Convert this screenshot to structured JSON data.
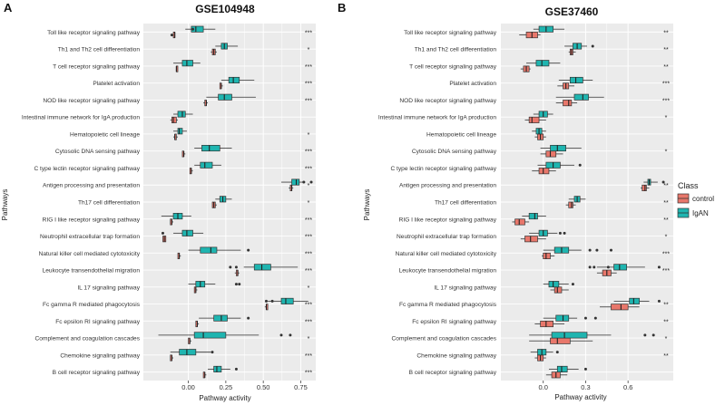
{
  "figure": {
    "pathways": [
      "Toll like receptor signaling pathway",
      "Th1 and Th2 cell differentiation",
      "T cell receptor signaling pathway",
      "Platelet activation",
      "NOD like receptor signaling pathway",
      "Intestinal immune network for IgA production",
      "Hematopoietic cell lineage",
      "Cytosolic DNA sensing pathway",
      "C type lectin receptor signaling pathway",
      "Antigen processing and presentation",
      "Th17 cell differentiation",
      "RIG I like receptor signaling pathway",
      "Neutrophil extracellular trap formation",
      "Natural killer cell mediated cytotoxicity",
      "Leukocyte transendothelial migration",
      "IL 17 signaling pathway",
      "Fc gamma R mediated phagocytosis",
      "Fc epsilon RI signaling pathway",
      "Complement and coagulation cascades",
      "Chemokine signaling pathway",
      "B cell receptor signaling pathway"
    ],
    "colors": {
      "control": "#e8776b",
      "IgAN": "#1fb5b0",
      "panel_bg": "#ebebeb",
      "grid": "#ffffff"
    },
    "legend": {
      "title": "Class",
      "entries": [
        "control",
        "IgAN"
      ],
      "placement": "right of panel B"
    }
  },
  "chart_data": [
    {
      "type": "boxplot",
      "panel_letter": "A",
      "title": "GSE104948",
      "xlabel": "Pathway activity",
      "ylabel": "Pathways",
      "xlim": [
        -0.3,
        0.85
      ],
      "xticks": [
        "0.00",
        "0.25",
        "0.50",
        "0.75"
      ],
      "xtick_values": [
        0,
        0.25,
        0.5,
        0.75
      ],
      "significance": [
        "***",
        "*",
        "***",
        "***",
        "***",
        "",
        "*",
        "***",
        "***",
        "*",
        "*",
        "***",
        "***",
        "***",
        "***",
        "*",
        "***",
        "***",
        "*",
        "***",
        "***"
      ],
      "control": [
        [
          -0.1,
          -0.1,
          -0.09,
          -0.09,
          -0.09,
          [
            -0.11
          ]
        ],
        [
          0.15,
          0.16,
          0.17,
          0.18,
          0.19,
          []
        ],
        [
          -0.08,
          -0.08,
          -0.08,
          -0.07,
          -0.07,
          []
        ],
        [
          0.21,
          0.21,
          0.22,
          0.22,
          0.23,
          []
        ],
        [
          0.1,
          0.11,
          0.12,
          0.12,
          0.13,
          []
        ],
        [
          -0.12,
          -0.11,
          -0.1,
          -0.08,
          -0.07,
          []
        ],
        [
          -0.1,
          -0.09,
          -0.09,
          -0.08,
          -0.07,
          []
        ],
        [
          -0.04,
          -0.04,
          -0.03,
          -0.03,
          -0.02,
          []
        ],
        [
          0.01,
          0.01,
          0.02,
          0.02,
          0.03,
          []
        ],
        [
          0.67,
          0.68,
          0.69,
          0.69,
          0.7,
          []
        ],
        [
          0.16,
          0.16,
          0.17,
          0.18,
          0.19,
          []
        ],
        [
          -0.12,
          -0.12,
          -0.11,
          -0.11,
          -0.1,
          []
        ],
        [
          -0.17,
          -0.17,
          -0.16,
          -0.15,
          -0.15,
          []
        ],
        [
          -0.07,
          -0.07,
          -0.06,
          -0.06,
          -0.05,
          []
        ],
        [
          0.31,
          0.32,
          0.33,
          0.33,
          0.34,
          []
        ],
        [
          0.04,
          0.04,
          0.05,
          0.05,
          0.06,
          []
        ],
        [
          0.51,
          0.52,
          0.52,
          0.53,
          0.53,
          []
        ],
        [
          0.05,
          0.05,
          0.06,
          0.06,
          0.07,
          []
        ],
        [
          0.0,
          0.0,
          0.01,
          0.01,
          0.02,
          []
        ],
        [
          -0.12,
          -0.12,
          -0.11,
          -0.11,
          -0.1,
          []
        ],
        [
          0.1,
          0.1,
          0.11,
          0.11,
          0.12,
          []
        ]
      ],
      "IgAN": [
        [
          -0.02,
          0.02,
          0.05,
          0.1,
          0.18,
          [
            0.03
          ]
        ],
        [
          0.18,
          0.22,
          0.24,
          0.26,
          0.33,
          []
        ],
        [
          -0.1,
          -0.04,
          -0.01,
          0.03,
          0.08,
          []
        ],
        [
          0.22,
          0.27,
          0.3,
          0.34,
          0.44,
          []
        ],
        [
          0.12,
          0.2,
          0.24,
          0.29,
          0.45,
          []
        ],
        [
          -0.1,
          -0.07,
          -0.04,
          -0.02,
          0.03,
          []
        ],
        [
          -0.1,
          -0.07,
          -0.06,
          -0.04,
          -0.01,
          []
        ],
        [
          0.04,
          0.09,
          0.14,
          0.21,
          0.29,
          []
        ],
        [
          0.04,
          0.08,
          0.11,
          0.16,
          0.22,
          []
        ],
        [
          0.62,
          0.69,
          0.72,
          0.74,
          0.78,
          [
            0.82,
            0.77
          ]
        ],
        [
          0.18,
          0.21,
          0.23,
          0.25,
          0.29,
          []
        ],
        [
          -0.18,
          -0.1,
          -0.07,
          -0.04,
          0.02,
          []
        ],
        [
          -0.1,
          -0.04,
          -0.01,
          0.03,
          0.1,
          [
            -0.17
          ]
        ],
        [
          0.0,
          0.08,
          0.15,
          0.19,
          0.35,
          [
            0.4
          ]
        ],
        [
          0.37,
          0.44,
          0.49,
          0.55,
          0.73,
          [
            0.28,
            0.32
          ]
        ],
        [
          0.0,
          0.05,
          0.08,
          0.11,
          0.18,
          [
            0.32,
            0.34
          ]
        ],
        [
          0.53,
          0.62,
          0.65,
          0.7,
          0.8,
          [
            0.52,
            0.56
          ]
        ],
        [
          0.07,
          0.17,
          0.22,
          0.26,
          0.35,
          [
            0.4
          ]
        ],
        [
          -0.2,
          0.04,
          0.1,
          0.25,
          0.47,
          [
            0.62,
            0.68
          ]
        ],
        [
          -0.12,
          -0.06,
          -0.01,
          0.05,
          0.15,
          [
            0.16
          ]
        ],
        [
          0.13,
          0.17,
          0.19,
          0.22,
          0.28,
          [
            0.32
          ]
        ]
      ]
    },
    {
      "type": "boxplot",
      "panel_letter": "B",
      "title": "GSE37460",
      "xlabel": "Pathway activity",
      "ylabel": "Pathways",
      "xlim": [
        -0.3,
        0.92
      ],
      "xticks": [
        "0.0",
        "0.3",
        "0.6"
      ],
      "xtick_values": [
        0,
        0.3,
        0.6
      ],
      "significance": [
        "**",
        "**",
        "**",
        "***",
        "***",
        "*",
        "",
        "*",
        "",
        "**",
        "**",
        "**",
        "*",
        "***",
        "***",
        "",
        "**",
        "**",
        "*",
        "**",
        ""
      ],
      "control": [
        [
          -0.17,
          -0.12,
          -0.08,
          -0.04,
          -0.02,
          []
        ],
        [
          0.18,
          0.19,
          0.2,
          0.21,
          0.23,
          []
        ],
        [
          -0.16,
          -0.14,
          -0.12,
          -0.1,
          -0.09,
          []
        ],
        [
          0.1,
          0.14,
          0.16,
          0.18,
          0.22,
          []
        ],
        [
          0.09,
          0.14,
          0.18,
          0.2,
          0.24,
          []
        ],
        [
          -0.13,
          -0.1,
          -0.08,
          -0.03,
          0.02,
          []
        ],
        [
          -0.06,
          -0.04,
          -0.02,
          0.0,
          0.02,
          []
        ],
        [
          -0.02,
          0.02,
          0.05,
          0.09,
          0.14,
          []
        ],
        [
          -0.08,
          -0.03,
          0.0,
          0.04,
          0.09,
          []
        ],
        [
          0.69,
          0.7,
          0.72,
          0.73,
          0.75,
          []
        ],
        [
          0.16,
          0.18,
          0.2,
          0.21,
          0.23,
          []
        ],
        [
          -0.22,
          -0.2,
          -0.17,
          -0.13,
          -0.1,
          []
        ],
        [
          -0.16,
          -0.13,
          -0.09,
          -0.04,
          0.02,
          []
        ],
        [
          -0.01,
          0.0,
          0.02,
          0.05,
          0.08,
          []
        ],
        [
          0.38,
          0.42,
          0.45,
          0.48,
          0.52,
          []
        ],
        [
          0.05,
          0.08,
          0.1,
          0.13,
          0.18,
          []
        ],
        [
          0.4,
          0.48,
          0.55,
          0.6,
          0.68,
          []
        ],
        [
          -0.06,
          -0.02,
          0.02,
          0.07,
          0.15,
          []
        ],
        [
          -0.1,
          0.05,
          0.1,
          0.19,
          0.35,
          []
        ],
        [
          -0.06,
          -0.04,
          -0.02,
          0.0,
          0.02,
          []
        ],
        [
          0.02,
          0.06,
          0.09,
          0.12,
          0.17,
          []
        ]
      ],
      "IgAN": [
        [
          -0.07,
          -0.03,
          0.02,
          0.07,
          0.15,
          []
        ],
        [
          0.15,
          0.21,
          0.24,
          0.27,
          0.31,
          [
            0.35
          ]
        ],
        [
          -0.12,
          -0.05,
          -0.01,
          0.04,
          0.12,
          []
        ],
        [
          0.11,
          0.19,
          0.23,
          0.28,
          0.35,
          []
        ],
        [
          0.09,
          0.22,
          0.28,
          0.32,
          0.43,
          []
        ],
        [
          -0.07,
          -0.03,
          0.0,
          0.03,
          0.07,
          []
        ],
        [
          -0.08,
          -0.05,
          -0.03,
          -0.01,
          0.02,
          []
        ],
        [
          -0.02,
          0.05,
          0.1,
          0.16,
          0.27,
          []
        ],
        [
          -0.04,
          0.02,
          0.07,
          0.12,
          0.22,
          [
            0.26
          ]
        ],
        [
          0.71,
          0.74,
          0.75,
          0.76,
          0.81,
          [
            0.85
          ]
        ],
        [
          0.18,
          0.22,
          0.24,
          0.26,
          0.3,
          []
        ],
        [
          -0.15,
          -0.1,
          -0.06,
          -0.04,
          0.02,
          []
        ],
        [
          -0.1,
          -0.03,
          0.0,
          0.03,
          0.1,
          [
            0.12,
            0.15
          ]
        ],
        [
          0.0,
          0.08,
          0.13,
          0.18,
          0.27,
          [
            0.33,
            0.38,
            0.48
          ]
        ],
        [
          0.38,
          0.5,
          0.54,
          0.59,
          0.72,
          [
            0.33,
            0.36,
            0.46,
            0.82
          ]
        ],
        [
          0.0,
          0.04,
          0.07,
          0.11,
          0.18,
          [
            0.21
          ]
        ],
        [
          0.5,
          0.61,
          0.64,
          0.68,
          0.75,
          [
            0.82
          ]
        ],
        [
          0.0,
          0.09,
          0.14,
          0.18,
          0.24,
          [
            0.3,
            0.37
          ]
        ],
        [
          -0.1,
          0.06,
          0.15,
          0.31,
          0.48,
          [
            0.72,
            0.78
          ]
        ],
        [
          -0.09,
          -0.04,
          -0.01,
          0.02,
          0.07,
          [
            0.1
          ]
        ],
        [
          0.04,
          0.1,
          0.13,
          0.17,
          0.25,
          [
            0.3
          ]
        ]
      ]
    }
  ]
}
